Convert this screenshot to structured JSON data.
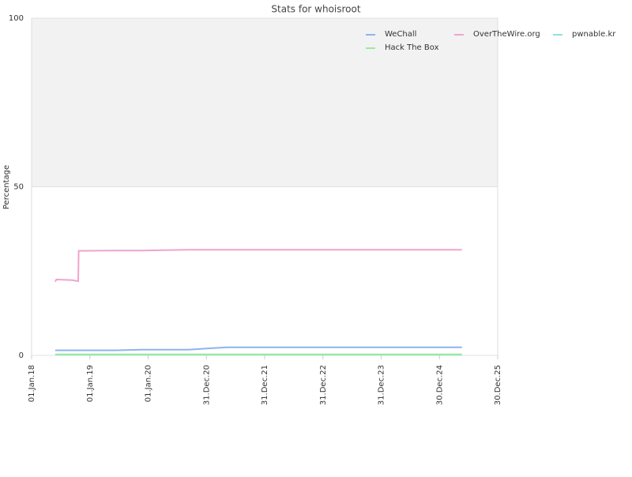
{
  "chart_data": {
    "type": "line",
    "title": "Stats for whoisroot",
    "y_label": "Percentage",
    "x": [
      "2018-05-29",
      "2018-06-05",
      "2018-09-15",
      "2018-10-20",
      "2018-10-23",
      "2019-06-10",
      "2019-11-20",
      "2020-09-10",
      "2021-05-10",
      "2025-05-20"
    ],
    "series": [
      {
        "name": "WeChall",
        "color": "#8cb4ee",
        "values": [
          1.5,
          1.5,
          1.5,
          1.5,
          1.5,
          1.5,
          1.7,
          1.7,
          2.4,
          2.4
        ]
      },
      {
        "name": "OverTheWire.org",
        "color": "#f0a4cc",
        "values": [
          21.8,
          22.5,
          22.3,
          22.0,
          31.0,
          31.1,
          31.1,
          31.3,
          31.3,
          31.3
        ]
      },
      {
        "name": "pwnable.kr",
        "color": "#88e4e0",
        "values": [
          0.2,
          0.2,
          0.2,
          0.2,
          0.2,
          0.2,
          0.2,
          0.2,
          0.2,
          0.2
        ]
      },
      {
        "name": "Hack The Box",
        "color": "#98ec98",
        "values": [
          0.3,
          0.3,
          0.3,
          0.3,
          0.3,
          0.3,
          0.3,
          0.3,
          0.3,
          0.3
        ]
      }
    ],
    "xlim": [
      "2018-01-01",
      "2025-12-30"
    ],
    "xticks": [
      {
        "value": "2018-01-01",
        "label": "01.Jan.18"
      },
      {
        "value": "2019-01-01",
        "label": "01.Jan.19"
      },
      {
        "value": "2020-01-01",
        "label": "01.Jan.20"
      },
      {
        "value": "2020-12-31",
        "label": "31.Dec.20"
      },
      {
        "value": "2021-12-31",
        "label": "31.Dec.21"
      },
      {
        "value": "2022-12-31",
        "label": "31.Dec.22"
      },
      {
        "value": "2023-12-31",
        "label": "31.Dec.23"
      },
      {
        "value": "2024-12-30",
        "label": "30.Dec.24"
      },
      {
        "value": "2025-12-30",
        "label": "30.Dec.25"
      }
    ],
    "ylim": [
      0,
      100
    ],
    "yticks": [
      0,
      50,
      100
    ],
    "grid": true,
    "legend": "top-right"
  }
}
